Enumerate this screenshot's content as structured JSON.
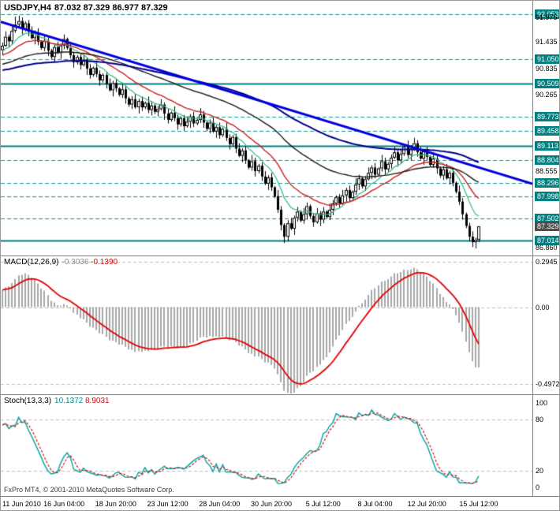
{
  "header": {
    "symbol_period": "USDJPY,H4",
    "ohlc": "87.032 87.329 86.977 87.329"
  },
  "colors": {
    "background": "#ffffff",
    "border": "#808080",
    "grid_teal_dashed": "#00a0a0",
    "level_solid": "#008080",
    "label_box_bg": "#008080",
    "label_box_text": "#ffffff",
    "current_price_box_bg": "#4d4d4d",
    "trendline": "#0000dd",
    "candle": "#000000",
    "candle_up_fill": "#ffffff",
    "candle_down_fill": "#000000",
    "macd_hist": "#a8a8a8",
    "macd_signal": "#e00000",
    "stoch_main": "#00a3a3",
    "stoch_signal": "#d40000",
    "grid_silver": "#c0c0c0"
  },
  "main_chart": {
    "price_range": {
      "top": 92.35,
      "bottom": 86.7
    },
    "trendline": {
      "price_start": 91.88,
      "price_end": 88.28
    },
    "levels": [
      {
        "price": 92.053,
        "style": "dashed"
      },
      {
        "price": 91.05,
        "style": "dashed"
      },
      {
        "price": 90.509,
        "style": "solid"
      },
      {
        "price": 89.773,
        "style": "dashed"
      },
      {
        "price": 89.458,
        "style": "dashed"
      },
      {
        "price": 89.113,
        "style": "solid"
      },
      {
        "price": 88.804,
        "style": "dashed"
      },
      {
        "price": 88.296,
        "style": "dashed"
      },
      {
        "price": 87.998,
        "style": "dashed"
      },
      {
        "price": 87.502,
        "style": "dashed"
      },
      {
        "price": 87.014,
        "style": "solid"
      }
    ],
    "axis_labels": [
      {
        "text": "92.053",
        "price": 92.053,
        "boxed": true
      },
      {
        "text": "91.975",
        "price": 91.975,
        "boxed": false
      },
      {
        "text": "91.435",
        "price": 91.435,
        "boxed": false
      },
      {
        "text": "91.050",
        "price": 91.05,
        "boxed": true
      },
      {
        "text": "90.835",
        "price": 90.835,
        "boxed": false
      },
      {
        "text": "90.509",
        "price": 90.509,
        "boxed": true
      },
      {
        "text": "90.265",
        "price": 90.265,
        "boxed": false
      },
      {
        "text": "89.773",
        "price": 89.773,
        "boxed": true
      },
      {
        "text": "89.458",
        "price": 89.458,
        "boxed": true
      },
      {
        "text": "89.113",
        "price": 89.113,
        "boxed": true
      },
      {
        "text": "88.804",
        "price": 88.804,
        "boxed": true
      },
      {
        "text": "88.555",
        "price": 88.555,
        "boxed": false
      },
      {
        "text": "88.296",
        "price": 88.296,
        "boxed": true
      },
      {
        "text": "87.998",
        "price": 87.998,
        "boxed": true
      },
      {
        "text": "87.502",
        "price": 87.502,
        "boxed": true
      },
      {
        "text": "87.329",
        "price": 87.329,
        "boxed": true,
        "current": true
      },
      {
        "text": "87.014",
        "price": 87.014,
        "boxed": true
      },
      {
        "text": "86.860",
        "price": 86.86,
        "boxed": false
      }
    ]
  },
  "chart_data": {
    "type": "candlestick",
    "symbol": "USDJPY",
    "timeframe": "H4",
    "last_ohlc": {
      "open": 87.032,
      "high": 87.329,
      "low": 86.977,
      "close": 87.329
    },
    "first_open": 91.25,
    "warmup_closes": [
      90.6,
      90.72,
      90.65,
      90.8,
      90.74,
      90.88,
      90.95,
      90.85,
      91.0,
      90.92,
      91.05,
      90.98,
      91.1,
      91.02,
      91.15,
      91.08,
      91.2,
      91.12,
      91.05,
      91.18,
      91.1,
      91.22,
      91.15,
      91.28,
      91.2,
      91.1,
      91.25,
      91.18,
      91.3,
      91.22
    ],
    "closes": [
      91.35,
      91.55,
      91.45,
      91.68,
      91.82,
      91.9,
      91.72,
      91.85,
      91.66,
      91.52,
      91.64,
      91.44,
      91.3,
      91.46,
      91.24,
      91.1,
      91.32,
      91.2,
      91.35,
      91.5,
      91.3,
      91.14,
      90.98,
      91.1,
      90.92,
      91.04,
      90.84,
      90.7,
      90.86,
      90.72,
      90.58,
      90.7,
      90.5,
      90.36,
      90.52,
      90.4,
      90.26,
      90.38,
      90.18,
      90.04,
      90.16,
      89.98,
      90.12,
      89.98,
      90.08,
      89.92,
      90.02,
      89.88,
      89.94,
      90.04,
      89.84,
      89.7,
      89.86,
      89.74,
      89.6,
      89.74,
      89.56,
      89.66,
      89.78,
      89.62,
      89.7,
      89.82,
      89.64,
      89.5,
      89.64,
      89.44,
      89.54,
      89.36,
      89.5,
      89.3,
      89.16,
      89.32,
      89.06,
      88.9,
      89.02,
      88.8,
      88.64,
      88.78,
      88.56,
      88.68,
      88.44,
      88.28,
      88.42,
      88.2,
      88.0,
      87.7,
      87.36,
      87.1,
      87.4,
      87.28,
      87.52,
      87.66,
      87.46,
      87.6,
      87.78,
      87.56,
      87.42,
      87.62,
      87.48,
      87.66,
      87.54,
      87.7,
      87.84,
      87.98,
      87.84,
      88.02,
      88.14,
      87.96,
      88.1,
      88.26,
      88.4,
      88.22,
      88.38,
      88.52,
      88.64,
      88.48,
      88.62,
      88.78,
      88.6,
      88.72,
      88.86,
      88.98,
      88.8,
      88.94,
      89.1,
      88.92,
      89.06,
      89.18,
      88.98,
      88.84,
      89.0,
      88.88,
      88.7,
      88.84,
      88.62,
      88.46,
      88.6,
      88.4,
      88.52,
      88.3,
      88.1,
      87.88,
      87.6,
      87.34,
      87.1,
      86.98,
      87.03,
      87.33
    ],
    "wick_pattern": [
      0.07,
      0.12,
      0.05,
      0.1,
      0.03,
      0.14,
      0.08,
      0.04
    ],
    "wick_overrides": {
      "4": {
        "high": 92.0
      },
      "5": {
        "high": 92.02
      },
      "87": {
        "low": 86.96
      },
      "127": {
        "high": 89.3
      },
      "145": {
        "low": 86.87
      },
      "147": {
        "high": 87.335,
        "low": 86.977
      }
    },
    "moving_averages": [
      {
        "period": 10,
        "color": "#3cb885",
        "width": 1.2
      },
      {
        "period": 21,
        "color": "#cc2020",
        "width": 1.4
      },
      {
        "period": 55,
        "color": "#1a1a1a",
        "width": 1.4
      },
      {
        "period": 110,
        "color": "#00008b",
        "width": 2
      }
    ],
    "x_ticks": [
      {
        "index": 0,
        "label": "11 Jun 2010"
      },
      {
        "index": 19,
        "label": "16 Jun 04:00"
      },
      {
        "index": 35,
        "label": "18 Jun 20:00"
      },
      {
        "index": 51,
        "label": "23 Jun 12:00"
      },
      {
        "index": 67,
        "label": "28 Jun 04:00"
      },
      {
        "index": 83,
        "label": "30 Jun 20:00"
      },
      {
        "index": 99,
        "label": "5 Jul 12:00"
      },
      {
        "index": 115,
        "label": "8 Jul 04:00"
      },
      {
        "index": 131,
        "label": "12 Jul 20:00"
      },
      {
        "index": 147,
        "label": "15 Jul 12:00"
      }
    ]
  },
  "macd": {
    "name": "MACD(12,26,9)",
    "value_hist": "-0.3036",
    "value_signal": "-0.1390",
    "params": [
      12,
      26,
      9
    ],
    "range": {
      "top": 0.33,
      "bottom": -0.56
    },
    "axis_labels": [
      {
        "text": "0.2945",
        "value": 0.2945,
        "dashed": true
      },
      {
        "text": "0.00",
        "value": 0,
        "dashed": true
      },
      {
        "text": "-0.4972",
        "value": -0.4972,
        "dashed": true
      }
    ]
  },
  "stoch": {
    "name": "Stoch(13,3,3)",
    "value_main": "10.1372",
    "value_signal": "8.9031",
    "params": [
      13,
      3,
      3
    ],
    "axis_labels": [
      {
        "text": "100",
        "value": 100,
        "dashed": false
      },
      {
        "text": "80",
        "value": 80,
        "dashed": true
      },
      {
        "text": "20",
        "value": 20,
        "dashed": true
      },
      {
        "text": "0",
        "value": 0,
        "dashed": false
      }
    ]
  },
  "footer": {
    "copyright": "FxPro MT4, © 2001-2010 MetaQuotes Software Corp."
  }
}
